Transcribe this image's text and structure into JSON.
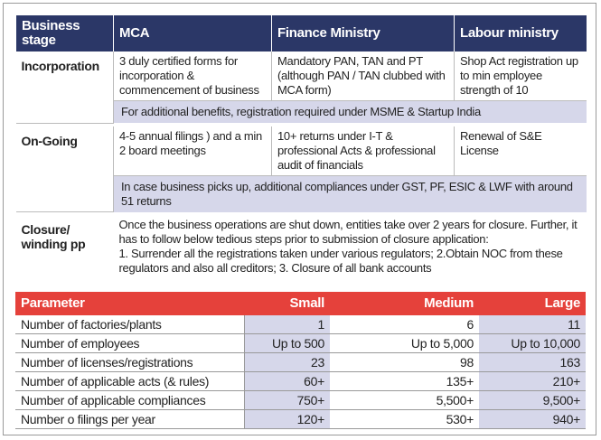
{
  "stages_table": {
    "header": [
      "Business stage",
      "MCA",
      "Finance Ministry",
      "Labour ministry"
    ],
    "rows": [
      {
        "label": "Incorporation",
        "cells": [
          "3 duly certified forms for incorporation & commencement of business",
          "Mandatory PAN, TAN and PT (although PAN / TAN clubbed with MCA form)",
          "Shop Act registration up to min employee strength of 10"
        ],
        "note": "For additional benefits, registration required under MSME & Startup India"
      },
      {
        "label": "On-Going",
        "cells": [
          "4-5 annual filings ) and a min 2 board meetings",
          "10+ returns under I-T & professional Acts & professional audit of financials",
          "Renewal of S&E License"
        ],
        "note": "In case business picks up, additional compliances under GST, PF, ESIC & LWF with around 51 returns"
      },
      {
        "label": "Closure/ winding pp",
        "text": [
          "Once the business operations are shut down, entities take over 2 years for closure. Further, it has to follow below tedious steps prior to submission of closure application:",
          "1. Surrender all the registrations taken under various regulators; 2.Obtain NOC from these regulators and also all creditors; 3.  Closure of all bank accounts"
        ]
      }
    ]
  },
  "size_table": {
    "header": [
      "Parameter",
      "Small",
      "Medium",
      "Large"
    ],
    "rows": [
      [
        "Number of factories/plants",
        "1",
        "6",
        "11"
      ],
      [
        "Number of employees",
        "Up to 500",
        "Up to 5,000",
        "Up to 10,000"
      ],
      [
        "Number of licenses/registrations",
        "23",
        "98",
        "163"
      ],
      [
        "Number of applicable acts (& rules)",
        "60+",
        "135+",
        "210+"
      ],
      [
        "Number of applicable compliances",
        "750+",
        "5,500+",
        "9,500+"
      ],
      [
        "Number o filings per year",
        "120+",
        "530+",
        "940+"
      ]
    ]
  }
}
